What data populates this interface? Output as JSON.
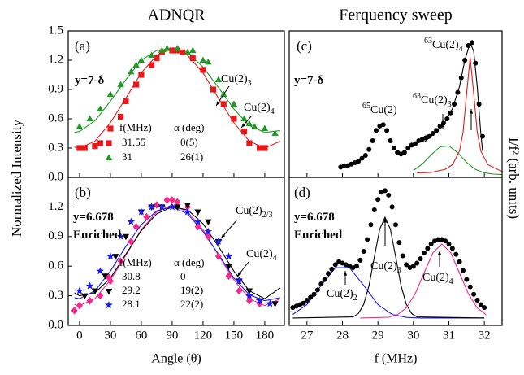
{
  "chart_data": [
    {
      "type": "scatter",
      "title": "ADNQR",
      "ylabel": "Normalized Intensity",
      "xlim": [
        -11,
        199
      ],
      "xticks": [
        0,
        30,
        60,
        90,
        120,
        150,
        180
      ],
      "xticklabels": false,
      "ylim": [
        0,
        1.5
      ],
      "yticks": [
        {
          "value": 0,
          "label": "0.0"
        },
        0.3,
        0.6,
        0.9,
        1.2,
        1.5
      ],
      "legend_headers": [
        "f(MHz)",
        "α (deg)"
      ],
      "annotations": [
        {
          "text": "(a)"
        },
        {
          "text": "y=7-δ"
        },
        {
          "text": "Cu(2)",
          "sub": "3"
        },
        {
          "text": "Cu(2)",
          "sub": "4"
        }
      ],
      "series": [
        {
          "name": "31.55",
          "alpha": "0(5)",
          "color": "#e8191c",
          "marker": "square",
          "x": [
            0,
            5,
            15,
            20,
            30,
            40,
            45,
            55,
            60,
            70,
            75,
            80,
            90,
            95,
            100,
            110,
            120,
            130,
            140,
            150,
            160,
            165,
            175,
            180
          ],
          "values": [
            0.3,
            0.3,
            0.32,
            0.35,
            0.5,
            0.62,
            0.78,
            0.95,
            1.05,
            1.15,
            1.22,
            1.28,
            1.3,
            1.3,
            1.28,
            1.22,
            1.1,
            0.9,
            0.75,
            0.6,
            0.47,
            0.35,
            0.3,
            0.3
          ]
        },
        {
          "name": "31",
          "alpha": "26(1)",
          "color": "#1f9a24",
          "marker": "triangle",
          "x": [
            0,
            10,
            20,
            30,
            40,
            50,
            55,
            60,
            70,
            80,
            85,
            95,
            105,
            110,
            120,
            125,
            135,
            140,
            150,
            160,
            165,
            170,
            180,
            190
          ],
          "values": [
            0.52,
            0.6,
            0.7,
            0.85,
            0.95,
            1.08,
            1.15,
            1.2,
            1.25,
            1.3,
            1.32,
            1.32,
            1.28,
            1.3,
            1.2,
            1.18,
            1.0,
            0.85,
            0.75,
            0.6,
            0.55,
            0.52,
            0.5,
            0.45
          ]
        }
      ],
      "fits": [
        {
          "color": "#e8191c",
          "x": [
            -5,
            0,
            15,
            30,
            45,
            60,
            75,
            90,
            105,
            120,
            135,
            150,
            165,
            180,
            195
          ],
          "values": [
            0.31,
            0.3,
            0.37,
            0.56,
            0.81,
            1.07,
            1.25,
            1.32,
            1.25,
            1.07,
            0.81,
            0.56,
            0.37,
            0.3,
            0.37
          ]
        },
        {
          "color": "#1f9a24",
          "x": [
            -5,
            0,
            15,
            30,
            45,
            60,
            75,
            90,
            105,
            120,
            135,
            150,
            165,
            180,
            195
          ],
          "values": [
            0.46,
            0.47,
            0.58,
            0.78,
            1.0,
            1.2,
            1.3,
            1.32,
            1.28,
            1.13,
            0.92,
            0.7,
            0.53,
            0.46,
            0.48
          ]
        }
      ]
    },
    {
      "type": "scatter",
      "xlabel": "Angle (θ)",
      "xlim": [
        -11,
        199
      ],
      "xticks": [
        0,
        30,
        60,
        90,
        120,
        150,
        180
      ],
      "ylim": [
        0,
        1.5
      ],
      "yticks": [
        {
          "value": 0,
          "label": "0.0"
        },
        0.3,
        0.6,
        0.9,
        1.2
      ],
      "legend_headers": [
        "f(MHz)",
        "α (deg)"
      ],
      "annotations": [
        {
          "text": "(b)"
        },
        {
          "text": "y=6.678"
        },
        {
          "text": "Enriched"
        },
        {
          "text": "Cu(2)",
          "sub": "2/3"
        },
        {
          "text": "Cu(2)",
          "sub": "4"
        }
      ],
      "series": [
        {
          "name": "30.8",
          "alpha": "0",
          "color": "#f5288c",
          "marker": "diamond",
          "x": [
            -5,
            0,
            10,
            20,
            30,
            40,
            50,
            55,
            65,
            75,
            85,
            90,
            95,
            105,
            115,
            125,
            135,
            145,
            155,
            165,
            175
          ],
          "values": [
            0.15,
            0.2,
            0.25,
            0.3,
            0.45,
            0.65,
            0.85,
            1.0,
            1.1,
            1.22,
            1.27,
            1.27,
            1.25,
            1.2,
            1.0,
            0.9,
            0.7,
            0.5,
            0.35,
            0.25,
            0.22
          ]
        },
        {
          "name": "29.2",
          "alpha": "19(2)",
          "color": "#000000",
          "marker": "triangle-down",
          "x": [
            5,
            15,
            25,
            35,
            45,
            60,
            70,
            80,
            95,
            105,
            115,
            125,
            135,
            145,
            155,
            165,
            175,
            190
          ],
          "values": [
            0.3,
            0.35,
            0.5,
            0.7,
            0.9,
            1.15,
            1.2,
            1.2,
            1.2,
            1.22,
            1.15,
            1.05,
            0.85,
            0.6,
            0.45,
            0.35,
            0.25,
            0.22
          ]
        },
        {
          "name": "28.1",
          "alpha": "22(2)",
          "color": "#1c1cf0",
          "marker": "star",
          "x": [
            0,
            10,
            20,
            30,
            40,
            50,
            60,
            70,
            80,
            90,
            105,
            115,
            125,
            135,
            145,
            155,
            165,
            175,
            185
          ],
          "values": [
            0.35,
            0.4,
            0.55,
            0.7,
            0.9,
            1.05,
            1.15,
            1.2,
            1.2,
            1.2,
            1.15,
            1.05,
            0.95,
            0.85,
            0.7,
            0.45,
            0.3,
            0.25,
            0.22
          ]
        }
      ],
      "fits": [
        {
          "color": "#f5288c",
          "x": [
            -5,
            0,
            15,
            30,
            45,
            60,
            75,
            90,
            105,
            120,
            135,
            150,
            165,
            180,
            195
          ],
          "values": [
            0.21,
            0.2,
            0.27,
            0.46,
            0.71,
            0.97,
            1.15,
            1.22,
            1.15,
            0.97,
            0.71,
            0.46,
            0.27,
            0.2,
            0.27
          ]
        },
        {
          "color": "#000000",
          "x": [
            -5,
            0,
            15,
            30,
            45,
            60,
            75,
            90,
            105,
            120,
            135,
            150,
            165,
            180,
            195
          ],
          "values": [
            0.33,
            0.3,
            0.33,
            0.48,
            0.72,
            0.96,
            1.13,
            1.2,
            1.17,
            1.03,
            0.8,
            0.55,
            0.35,
            0.27,
            0.38
          ]
        },
        {
          "color": "#1c1cf0",
          "x": [
            -5,
            0,
            15,
            30,
            45,
            60,
            75,
            90,
            105,
            120,
            135,
            150,
            165,
            180,
            195
          ],
          "values": [
            0.28,
            0.27,
            0.35,
            0.55,
            0.8,
            1.02,
            1.16,
            1.2,
            1.13,
            0.95,
            0.72,
            0.48,
            0.31,
            0.25,
            0.28
          ]
        }
      ]
    },
    {
      "type": "scatter",
      "title": "Ferquency sweep",
      "ylabel": "I/f² (arb. units)",
      "xlim": [
        26.5,
        32.5
      ],
      "xticks": [
        27,
        28,
        29,
        30,
        31,
        32
      ],
      "xticklabels": false,
      "ylim": [
        0,
        1
      ],
      "annotations": [
        {
          "text": "(c)"
        },
        {
          "text": "y=7-δ"
        },
        {
          "pre": "65",
          "text": "Cu(2)"
        },
        {
          "pre": "63",
          "text": "Cu(2)",
          "sub": "3"
        },
        {
          "pre": "63",
          "text": "Cu(2)",
          "sub": "4"
        }
      ],
      "series": [
        {
          "color": "#000000",
          "marker": "circle",
          "x": [
            27.95,
            28.05,
            28.15,
            28.25,
            28.35,
            28.45,
            28.55,
            28.65,
            28.75,
            28.85,
            28.95,
            29.05,
            29.15,
            29.25,
            29.35,
            29.45,
            29.55,
            29.65,
            29.75,
            29.85,
            29.95,
            30.05,
            30.15,
            30.25,
            30.35,
            30.45,
            30.55,
            30.65,
            30.75,
            30.85,
            30.95,
            31.05,
            31.15,
            31.25,
            31.35,
            31.45,
            31.55,
            31.65,
            31.75,
            31.85,
            31.95
          ],
          "values": [
            0.07,
            0.08,
            0.08,
            0.09,
            0.1,
            0.11,
            0.13,
            0.15,
            0.19,
            0.25,
            0.32,
            0.35,
            0.36,
            0.32,
            0.25,
            0.2,
            0.17,
            0.16,
            0.17,
            0.2,
            0.22,
            0.23,
            0.25,
            0.26,
            0.27,
            0.28,
            0.3,
            0.32,
            0.35,
            0.37,
            0.4,
            0.44,
            0.5,
            0.58,
            0.68,
            0.8,
            0.9,
            0.92,
            0.78,
            0.5,
            0.28
          ]
        }
      ],
      "fits": [
        {
          "color": "#e8191c",
          "x": [
            30.1,
            30.5,
            30.9,
            31.1,
            31.3,
            31.4,
            31.5,
            31.6,
            31.7,
            31.8,
            31.9,
            32.1,
            32.5
          ],
          "values": [
            0.03,
            0.034,
            0.055,
            0.086,
            0.18,
            0.31,
            0.57,
            0.82,
            0.57,
            0.31,
            0.18,
            0.086,
            0.04
          ]
        },
        {
          "color": "#1f9a24",
          "x": [
            30.0,
            30.25,
            30.5,
            30.75,
            31.0,
            31.25,
            31.5,
            31.75,
            32.0,
            32.25,
            32.5
          ],
          "values": [
            0.047,
            0.091,
            0.154,
            0.209,
            0.215,
            0.168,
            0.102,
            0.054,
            0.03,
            0.022,
            0.02
          ]
        },
        {
          "color": "#000000",
          "x": [
            30.3,
            30.5,
            30.7,
            30.9,
            31.1,
            31.3,
            31.45,
            31.6,
            31.7,
            31.8,
            31.9,
            31.95
          ],
          "values": [
            0.24,
            0.28,
            0.33,
            0.38,
            0.47,
            0.62,
            0.8,
            0.92,
            0.86,
            0.62,
            0.3,
            0.18
          ]
        }
      ]
    },
    {
      "type": "scatter",
      "xlabel": "f (MHz)",
      "xlim": [
        26.5,
        32.5
      ],
      "xticks": [
        27,
        28,
        29,
        30,
        31,
        32
      ],
      "ylim": [
        0,
        1
      ],
      "annotations": [
        {
          "text": "(d)"
        },
        {
          "text": "y=6.678"
        },
        {
          "text": "Enriched"
        },
        {
          "text": "Cu(2)",
          "sub": "2"
        },
        {
          "text": "Cu(2)",
          "sub": "3"
        },
        {
          "text": "Cu(2)",
          "sub": "4"
        }
      ],
      "series": [
        {
          "color": "#000000",
          "marker": "circle",
          "x": [
            26.6,
            26.7,
            26.8,
            26.9,
            27.0,
            27.1,
            27.2,
            27.3,
            27.4,
            27.5,
            27.6,
            27.7,
            27.8,
            27.9,
            28.0,
            28.1,
            28.2,
            28.3,
            28.4,
            28.5,
            28.6,
            28.7,
            28.8,
            28.9,
            29.0,
            29.1,
            29.2,
            29.3,
            29.4,
            29.5,
            29.6,
            29.7,
            29.8,
            29.9,
            30.0,
            30.1,
            30.2,
            30.3,
            30.4,
            30.5,
            30.6,
            30.7,
            30.8,
            30.9,
            31.0,
            31.1,
            31.2,
            31.3,
            31.4,
            31.5,
            31.6,
            31.7,
            31.8,
            31.9,
            32.0
          ],
          "values": [
            0.12,
            0.13,
            0.14,
            0.15,
            0.17,
            0.19,
            0.21,
            0.24,
            0.28,
            0.31,
            0.35,
            0.38,
            0.41,
            0.43,
            0.42,
            0.41,
            0.4,
            0.39,
            0.4,
            0.44,
            0.5,
            0.58,
            0.68,
            0.78,
            0.85,
            0.9,
            0.91,
            0.88,
            0.8,
            0.68,
            0.56,
            0.47,
            0.41,
            0.39,
            0.4,
            0.42,
            0.45,
            0.49,
            0.52,
            0.55,
            0.57,
            0.58,
            0.58,
            0.57,
            0.55,
            0.52,
            0.48,
            0.43,
            0.37,
            0.31,
            0.26,
            0.21,
            0.17,
            0.14,
            0.12
          ]
        }
      ],
      "fits": [
        {
          "color": "#1c1cf0",
          "x": [
            26.6,
            27.0,
            27.4,
            27.8,
            28.2,
            28.6,
            29.0,
            29.4,
            29.8,
            30.2,
            31.0,
            32.0
          ],
          "values": [
            0.074,
            0.14,
            0.27,
            0.39,
            0.39,
            0.27,
            0.14,
            0.074,
            0.054,
            0.05,
            0.05,
            0.05
          ]
        },
        {
          "color": "#000000",
          "x": [
            26.6,
            28.3,
            28.45,
            28.6,
            28.75,
            28.9,
            29.05,
            29.2,
            29.35,
            29.5,
            29.65,
            29.8,
            29.95,
            30.1,
            32.0
          ],
          "values": [
            0.05,
            0.057,
            0.08,
            0.142,
            0.271,
            0.463,
            0.65,
            0.73,
            0.65,
            0.463,
            0.271,
            0.142,
            0.08,
            0.057,
            0.05
          ]
        },
        {
          "color": "#f5288c",
          "x": [
            28.5,
            29.3,
            29.55,
            29.8,
            30.05,
            30.3,
            30.55,
            30.8,
            31.05,
            31.3,
            31.55,
            31.8,
            32.05
          ],
          "values": [
            0.05,
            0.055,
            0.072,
            0.118,
            0.213,
            0.354,
            0.491,
            0.55,
            0.491,
            0.354,
            0.213,
            0.118,
            0.072
          ]
        }
      ]
    }
  ]
}
